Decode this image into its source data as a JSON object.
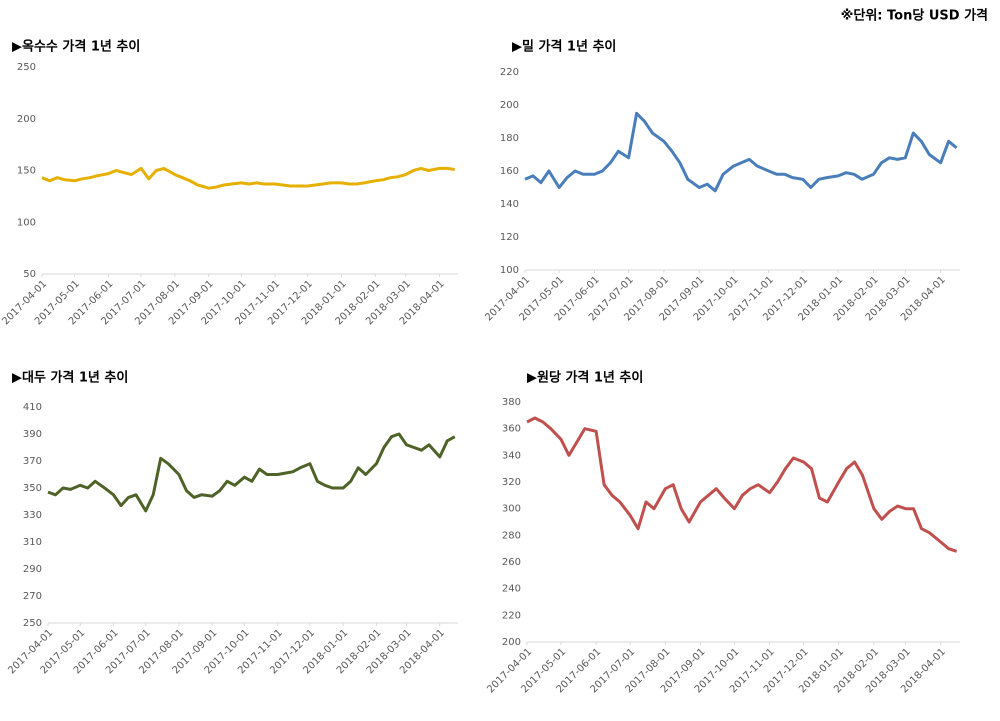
{
  "note": "※단위: Ton당 USD 가격",
  "chart_data": [
    {
      "type": "line",
      "title": "▶옥수수 가격 1년 추이",
      "color": "#e6b000",
      "x": [
        "2017-04-01",
        "2017-04-08",
        "2017-04-15",
        "2017-04-22",
        "2017-05-01",
        "2017-05-08",
        "2017-05-15",
        "2017-05-22",
        "2017-06-01",
        "2017-06-08",
        "2017-06-15",
        "2017-06-22",
        "2017-07-01",
        "2017-07-08",
        "2017-07-15",
        "2017-07-22",
        "2017-08-01",
        "2017-08-08",
        "2017-08-15",
        "2017-08-22",
        "2017-09-01",
        "2017-09-08",
        "2017-09-15",
        "2017-09-22",
        "2017-10-01",
        "2017-10-08",
        "2017-10-15",
        "2017-10-22",
        "2017-11-01",
        "2017-11-08",
        "2017-11-15",
        "2017-11-22",
        "2017-12-01",
        "2017-12-08",
        "2017-12-15",
        "2017-12-22",
        "2018-01-01",
        "2018-01-08",
        "2018-01-15",
        "2018-01-22",
        "2018-02-01",
        "2018-02-08",
        "2018-02-15",
        "2018-02-22",
        "2018-03-01",
        "2018-03-08",
        "2018-03-15",
        "2018-03-22",
        "2018-04-01",
        "2018-04-08",
        "2018-04-15"
      ],
      "values": [
        143,
        140,
        143,
        141,
        140,
        142,
        143,
        145,
        147,
        150,
        148,
        146,
        152,
        142,
        150,
        152,
        146,
        143,
        140,
        136,
        133,
        134,
        136,
        137,
        138,
        137,
        138,
        137,
        137,
        136,
        135,
        135,
        135,
        136,
        137,
        138,
        138,
        137,
        137,
        138,
        140,
        141,
        143,
        144,
        146,
        150,
        152,
        150,
        152,
        152,
        151
      ],
      "xlim": [
        "2017-04-01",
        "2018-04-18"
      ],
      "xticks": [
        "2017-04-01",
        "2017-05-01",
        "2017-06-01",
        "2017-07-01",
        "2017-08-01",
        "2017-09-01",
        "2017-10-01",
        "2017-11-01",
        "2017-12-01",
        "2018-01-01",
        "2018-02-01",
        "2018-03-01",
        "2018-04-01"
      ],
      "ylim": [
        50,
        250
      ],
      "yticks": [
        50,
        100,
        150,
        200,
        250
      ]
    },
    {
      "type": "line",
      "title": "▶밀 가격 1년 추이",
      "color": "#4a7ebb",
      "x": [
        "2017-04-01",
        "2017-04-08",
        "2017-04-15",
        "2017-04-22",
        "2017-05-01",
        "2017-05-08",
        "2017-05-15",
        "2017-05-22",
        "2017-06-01",
        "2017-06-08",
        "2017-06-15",
        "2017-06-22",
        "2017-07-01",
        "2017-07-08",
        "2017-07-15",
        "2017-07-22",
        "2017-08-01",
        "2017-08-08",
        "2017-08-15",
        "2017-08-22",
        "2017-09-01",
        "2017-09-08",
        "2017-09-15",
        "2017-09-22",
        "2017-10-01",
        "2017-10-08",
        "2017-10-15",
        "2017-10-22",
        "2017-11-01",
        "2017-11-08",
        "2017-11-15",
        "2017-11-22",
        "2017-12-01",
        "2017-12-08",
        "2017-12-15",
        "2017-12-22",
        "2018-01-01",
        "2018-01-08",
        "2018-01-15",
        "2018-01-22",
        "2018-02-01",
        "2018-02-08",
        "2018-02-15",
        "2018-02-22",
        "2018-03-01",
        "2018-03-08",
        "2018-03-15",
        "2018-03-22",
        "2018-04-01",
        "2018-04-08",
        "2018-04-15"
      ],
      "values": [
        155,
        157,
        153,
        160,
        150,
        156,
        160,
        158,
        158,
        160,
        165,
        172,
        168,
        195,
        190,
        183,
        178,
        172,
        165,
        155,
        150,
        152,
        148,
        158,
        163,
        165,
        167,
        163,
        160,
        158,
        158,
        156,
        155,
        150,
        155,
        156,
        157,
        159,
        158,
        155,
        158,
        165,
        168,
        167,
        168,
        183,
        178,
        170,
        165,
        178,
        174
      ],
      "xlim": [
        "2017-04-01",
        "2018-04-18"
      ],
      "xticks": [
        "2017-04-01",
        "2017-05-01",
        "2017-06-01",
        "2017-07-01",
        "2017-08-01",
        "2017-09-01",
        "2017-10-01",
        "2017-11-01",
        "2017-12-01",
        "2018-01-01",
        "2018-02-01",
        "2018-03-01",
        "2018-04-01"
      ],
      "ylim": [
        100,
        220
      ],
      "yticks": [
        100,
        120,
        140,
        160,
        180,
        200,
        220
      ]
    },
    {
      "type": "line",
      "title": "▶대두 가격 1년 추이",
      "color": "#4f6228",
      "x": [
        "2017-04-01",
        "2017-04-08",
        "2017-04-15",
        "2017-04-22",
        "2017-05-01",
        "2017-05-08",
        "2017-05-15",
        "2017-05-22",
        "2017-06-01",
        "2017-06-08",
        "2017-06-15",
        "2017-06-22",
        "2017-07-01",
        "2017-07-08",
        "2017-07-15",
        "2017-07-22",
        "2017-08-01",
        "2017-08-08",
        "2017-08-15",
        "2017-08-22",
        "2017-09-01",
        "2017-09-08",
        "2017-09-15",
        "2017-09-22",
        "2017-10-01",
        "2017-10-08",
        "2017-10-15",
        "2017-10-22",
        "2017-11-01",
        "2017-11-08",
        "2017-11-15",
        "2017-11-22",
        "2017-12-01",
        "2017-12-08",
        "2017-12-15",
        "2017-12-22",
        "2018-01-01",
        "2018-01-08",
        "2018-01-15",
        "2018-01-22",
        "2018-02-01",
        "2018-02-08",
        "2018-02-15",
        "2018-02-22",
        "2018-03-01",
        "2018-03-08",
        "2018-03-15",
        "2018-03-22",
        "2018-04-01",
        "2018-04-08",
        "2018-04-15"
      ],
      "values": [
        347,
        345,
        350,
        349,
        352,
        350,
        355,
        351,
        345,
        337,
        343,
        345,
        333,
        345,
        372,
        368,
        360,
        348,
        343,
        345,
        344,
        348,
        355,
        352,
        358,
        355,
        364,
        360,
        360,
        361,
        362,
        365,
        368,
        355,
        352,
        350,
        350,
        355,
        365,
        360,
        368,
        380,
        388,
        390,
        382,
        380,
        378,
        382,
        373,
        385,
        388
      ],
      "xlim": [
        "2017-04-01",
        "2018-04-18"
      ],
      "xticks": [
        "2017-04-01",
        "2017-05-01",
        "2017-06-01",
        "2017-07-01",
        "2017-08-01",
        "2017-09-01",
        "2017-10-01",
        "2017-11-01",
        "2017-12-01",
        "2018-01-01",
        "2018-02-01",
        "2018-03-01",
        "2018-04-01"
      ],
      "ylim": [
        250,
        410
      ],
      "yticks": [
        250,
        270,
        290,
        310,
        330,
        350,
        370,
        390,
        410
      ]
    },
    {
      "type": "line",
      "title": "▶원당 가격 1년 추이",
      "color": "#c0504d",
      "x": [
        "2017-04-01",
        "2017-04-08",
        "2017-04-15",
        "2017-04-22",
        "2017-05-01",
        "2017-05-08",
        "2017-05-15",
        "2017-05-22",
        "2017-06-01",
        "2017-06-08",
        "2017-06-15",
        "2017-06-22",
        "2017-07-01",
        "2017-07-08",
        "2017-07-15",
        "2017-07-22",
        "2017-08-01",
        "2017-08-08",
        "2017-08-15",
        "2017-08-22",
        "2017-09-01",
        "2017-09-08",
        "2017-09-15",
        "2017-09-22",
        "2017-10-01",
        "2017-10-08",
        "2017-10-15",
        "2017-10-22",
        "2017-11-01",
        "2017-11-08",
        "2017-11-15",
        "2017-11-22",
        "2017-12-01",
        "2017-12-08",
        "2017-12-15",
        "2017-12-22",
        "2018-01-01",
        "2018-01-08",
        "2018-01-15",
        "2018-01-22",
        "2018-02-01",
        "2018-02-08",
        "2018-02-15",
        "2018-02-22",
        "2018-03-01",
        "2018-03-08",
        "2018-03-15",
        "2018-03-22",
        "2018-04-01",
        "2018-04-08",
        "2018-04-15"
      ],
      "values": [
        365,
        368,
        365,
        360,
        352,
        340,
        350,
        360,
        358,
        318,
        310,
        305,
        295,
        285,
        305,
        300,
        315,
        318,
        300,
        290,
        305,
        310,
        315,
        308,
        300,
        310,
        315,
        318,
        312,
        320,
        330,
        338,
        335,
        330,
        308,
        305,
        320,
        330,
        335,
        325,
        300,
        292,
        298,
        302,
        300,
        300,
        285,
        282,
        275,
        270,
        268
      ],
      "xlim": [
        "2017-04-01",
        "2018-04-18"
      ],
      "xticks": [
        "2017-04-01",
        "2017-05-01",
        "2017-06-01",
        "2017-07-01",
        "2017-08-01",
        "2017-09-01",
        "2017-10-01",
        "2017-11-01",
        "2017-12-01",
        "2018-01-01",
        "2018-02-01",
        "2018-03-01",
        "2018-04-01"
      ],
      "ylim": [
        200,
        380
      ],
      "yticks": [
        200,
        220,
        240,
        260,
        280,
        300,
        320,
        340,
        360,
        380
      ]
    }
  ]
}
